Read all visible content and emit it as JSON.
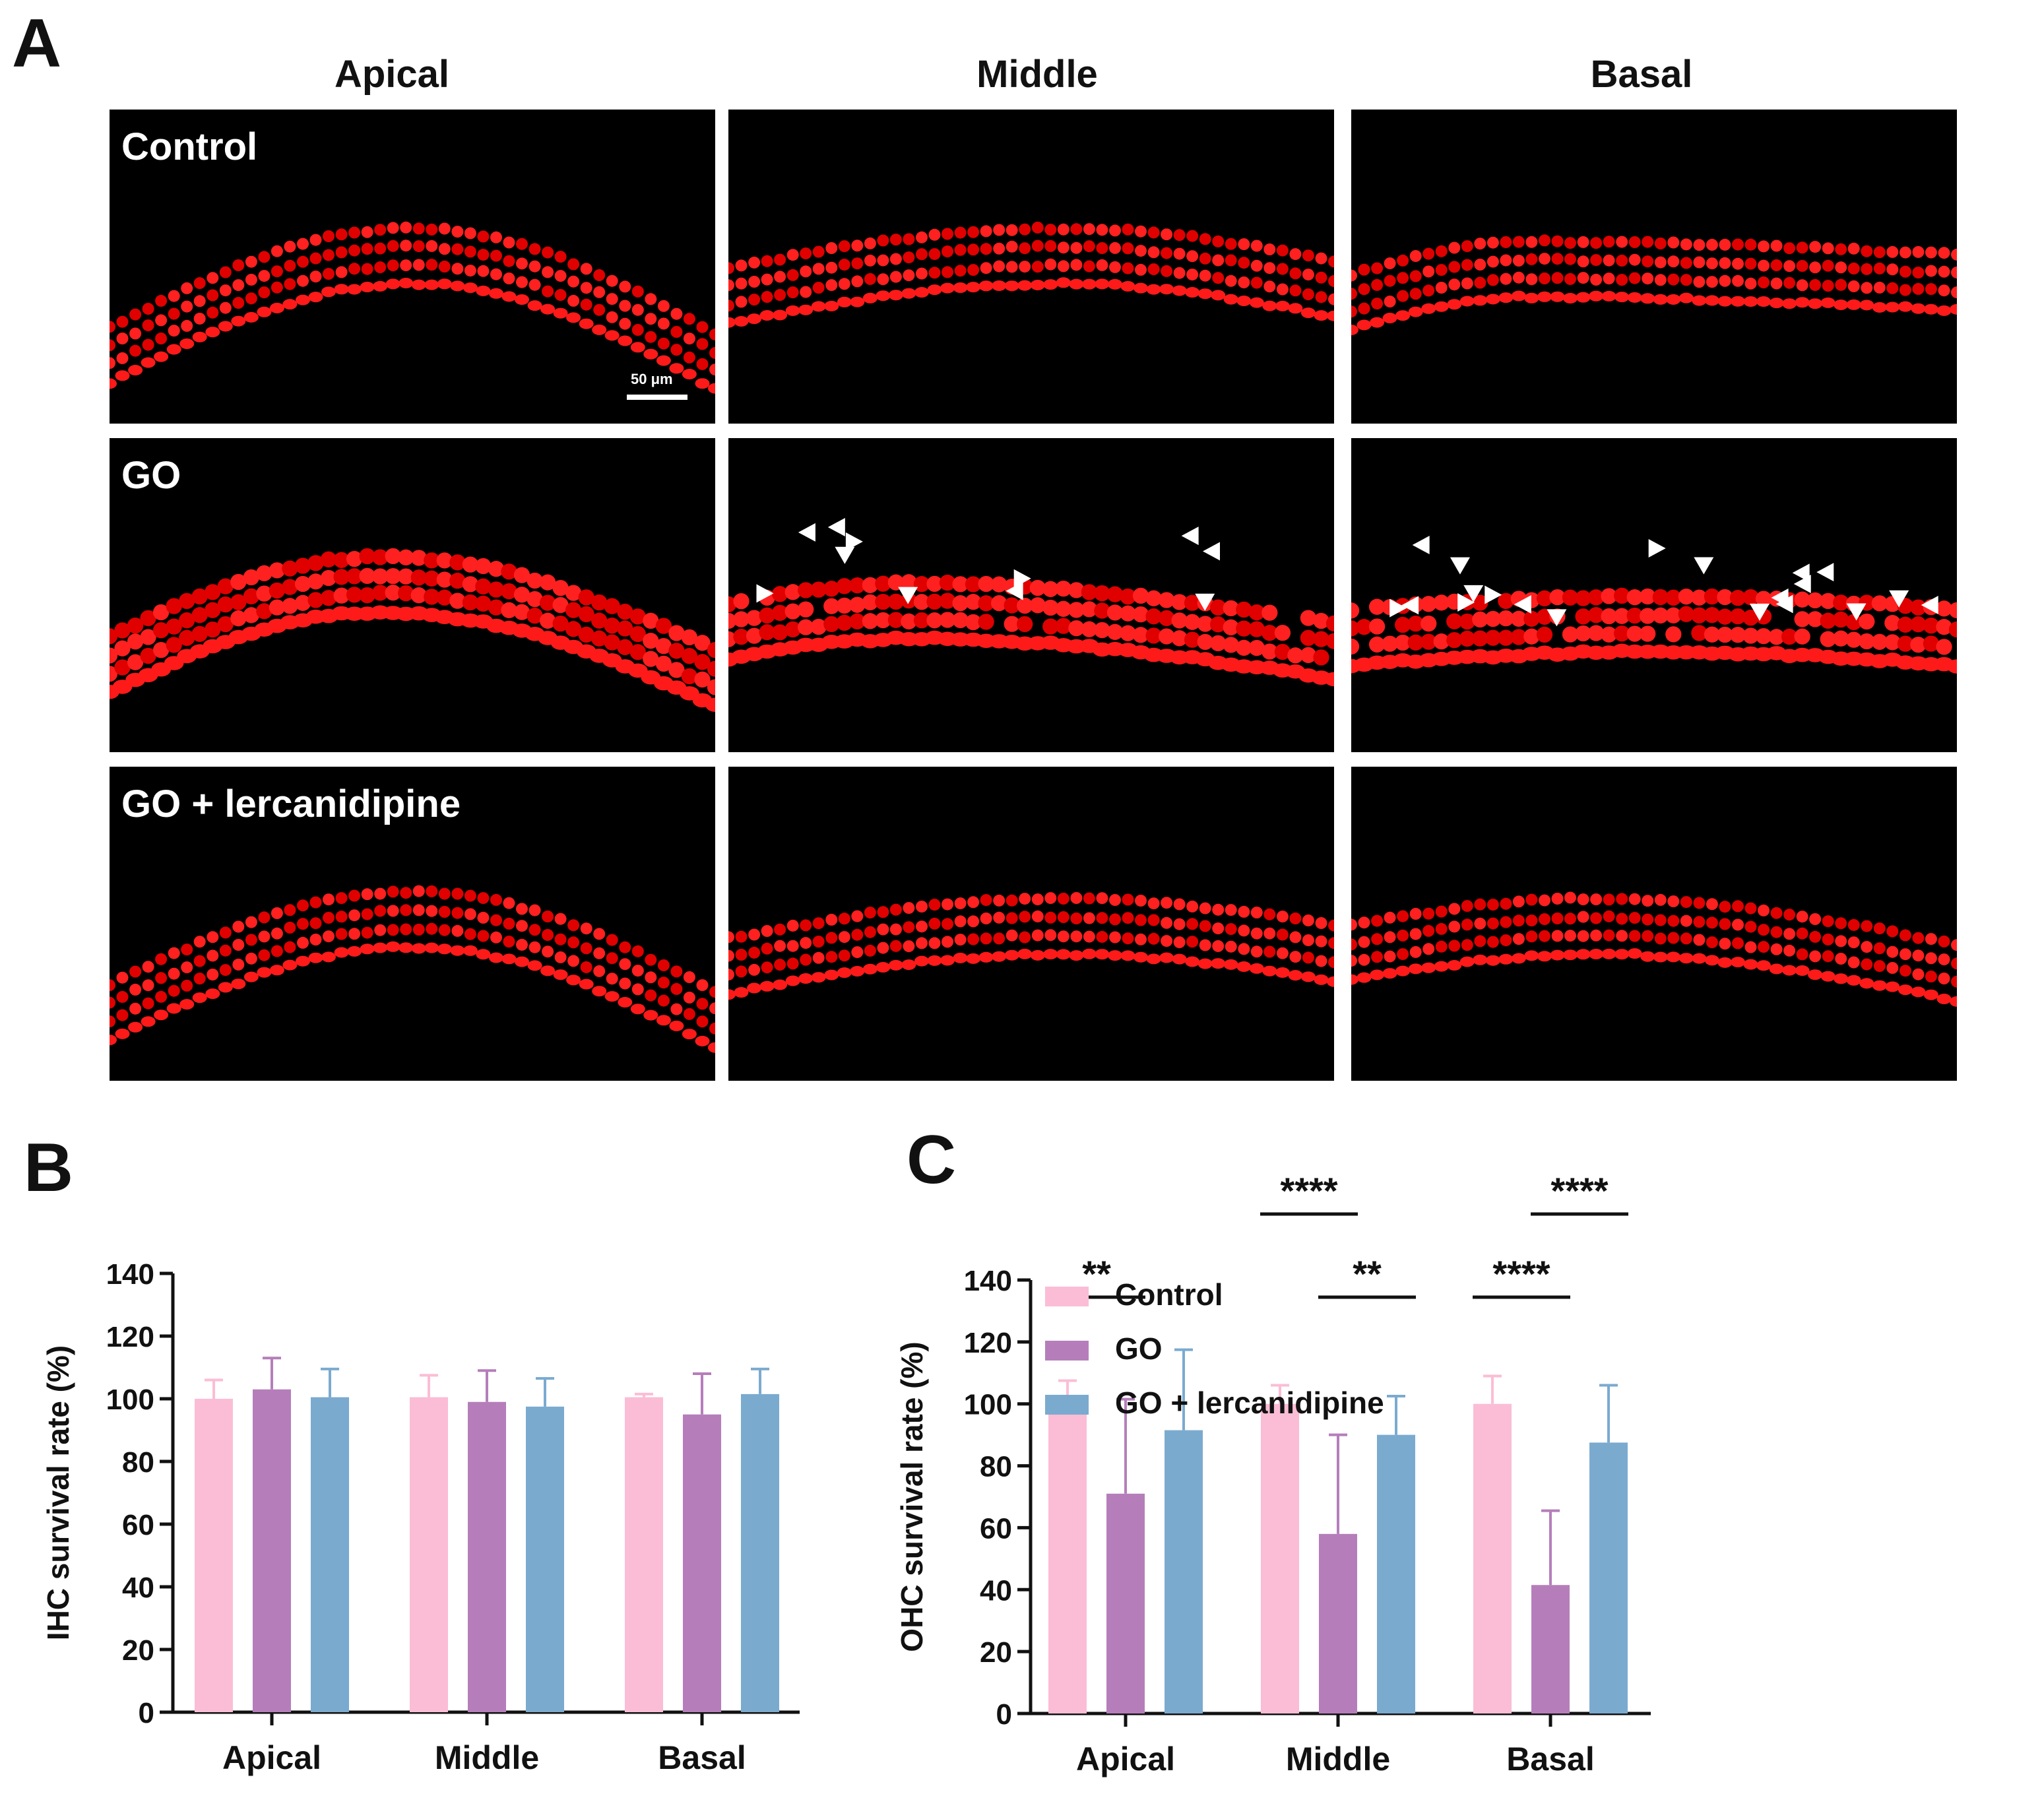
{
  "panel_A": {
    "letter": "A",
    "columns": [
      "Apical",
      "Middle",
      "Basal"
    ],
    "rows": [
      "Control",
      "GO",
      "GO + lercanidipine"
    ],
    "scale_bar_label": "50 μm"
  },
  "panel_B": {
    "letter": "B"
  },
  "panel_C": {
    "letter": "C"
  },
  "colors": {
    "control": "#FBBDD5",
    "go": "#B57EBA",
    "go_lerc": "#7BAACF"
  },
  "chart_data": [
    {
      "id": "B",
      "type": "bar",
      "title": "",
      "ylabel": "IHC survival rate (%)",
      "xlabel": "",
      "categories": [
        "Apical",
        "Middle",
        "Basal"
      ],
      "ylim": [
        0,
        140
      ],
      "yticks": [
        "0",
        "20",
        "40",
        "60",
        "80",
        "100",
        "120",
        "140"
      ],
      "series": [
        {
          "name": "Control",
          "values": [
            100,
            100.5,
            100.5
          ],
          "errors": [
            6,
            7,
            1
          ]
        },
        {
          "name": "GO",
          "values": [
            103,
            99,
            95
          ],
          "errors": [
            10,
            10,
            13
          ]
        },
        {
          "name": "GO + lercanidipine",
          "values": [
            100.5,
            97.5,
            101.5
          ],
          "errors": [
            9,
            9,
            8
          ]
        }
      ],
      "significance": []
    },
    {
      "id": "C",
      "type": "bar",
      "title": "",
      "ylabel": "OHC survival rate (%)",
      "xlabel": "",
      "categories": [
        "Apical",
        "Middle",
        "Basal"
      ],
      "ylim": [
        0,
        140
      ],
      "yticks": [
        "0",
        "20",
        "40",
        "60",
        "80",
        "100",
        "120",
        "140"
      ],
      "series": [
        {
          "name": "Control",
          "values": [
            100,
            100,
            100
          ],
          "errors": [
            7.5,
            6,
            9
          ]
        },
        {
          "name": "GO",
          "values": [
            71,
            58,
            41.5
          ],
          "errors": [
            30.5,
            32,
            24
          ]
        },
        {
          "name": "GO + lercanidipine",
          "values": [
            91.5,
            90,
            87.5
          ],
          "errors": [
            26,
            12.5,
            18.5
          ]
        }
      ],
      "significance": [
        {
          "label": "**",
          "category": 0,
          "from_series": 0,
          "to_series": 1,
          "level": 1
        },
        {
          "label": "**",
          "category": 1,
          "from_series": 1,
          "to_series": 2,
          "level": 1
        },
        {
          "label": "****",
          "category": 1,
          "from_series": 0,
          "to_series": 1,
          "level": 2
        },
        {
          "label": "****",
          "category": 2,
          "from_series": 0,
          "to_series": 1,
          "level": 1
        },
        {
          "label": "****",
          "category": 2,
          "from_series": 1,
          "to_series": 2,
          "level": 2
        }
      ],
      "legend": [
        "Control",
        "GO",
        "GO + lercanidipine"
      ]
    }
  ]
}
